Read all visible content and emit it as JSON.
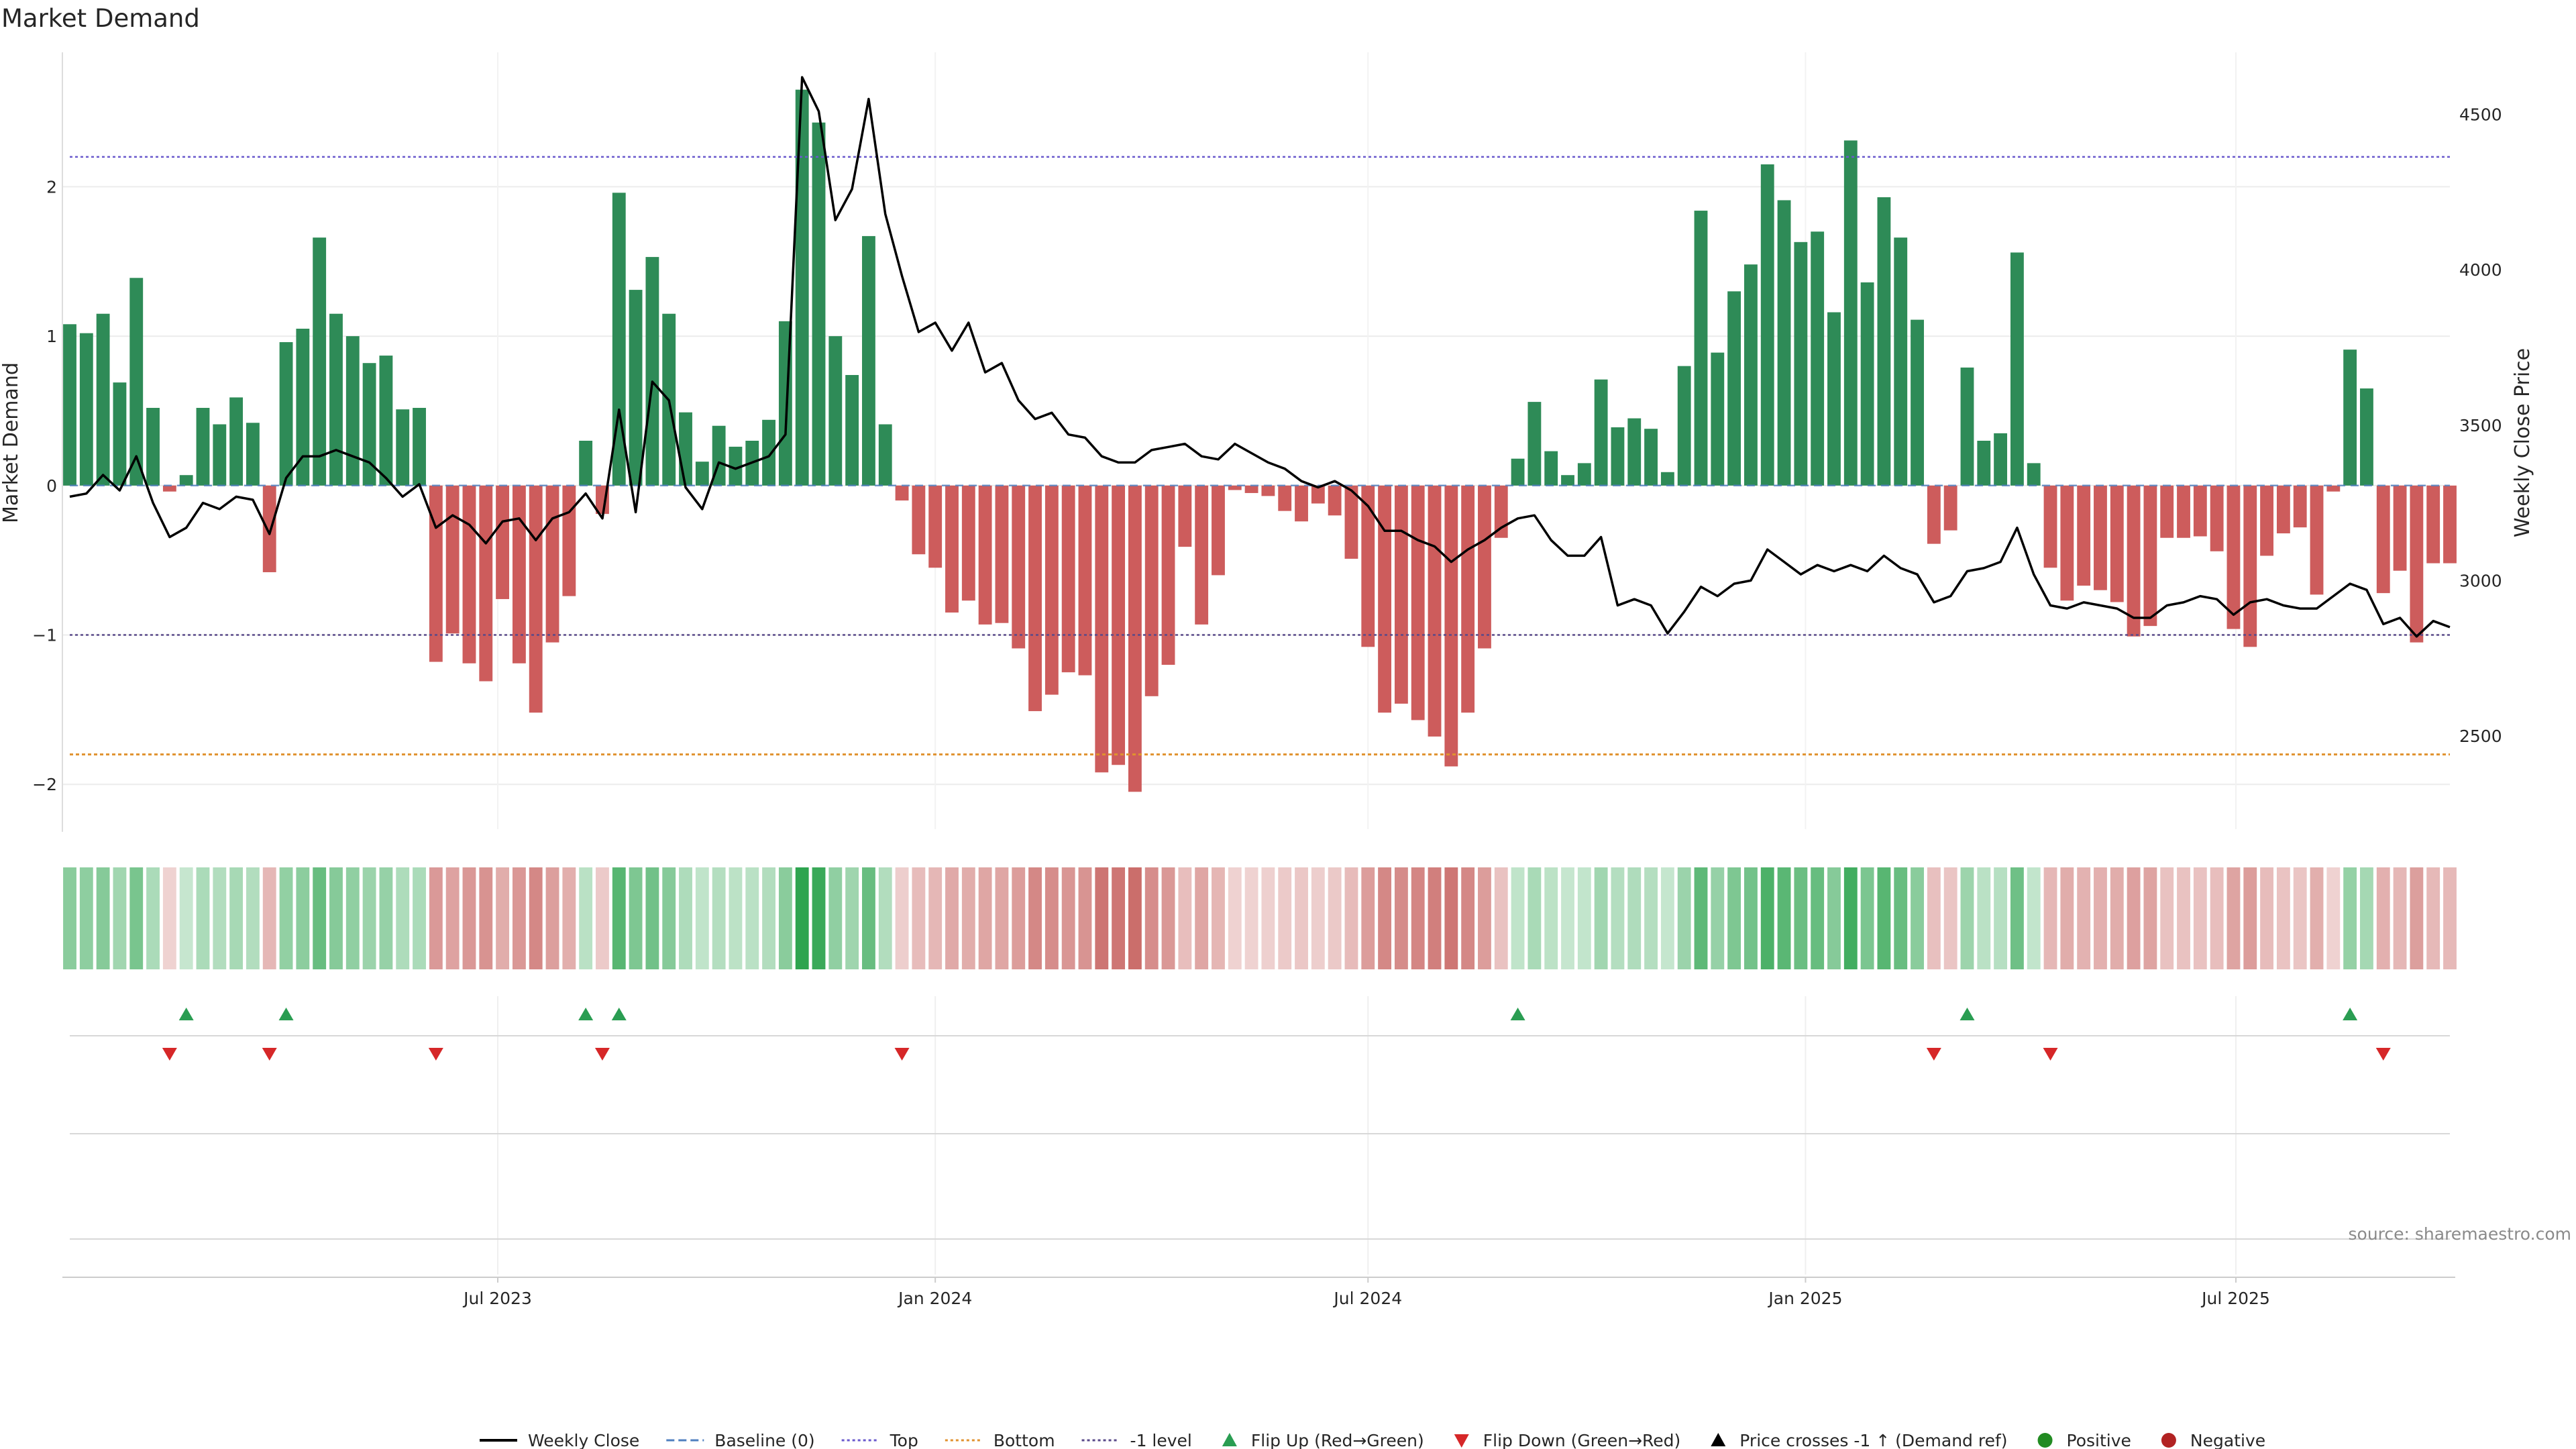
{
  "chart_data": {
    "type": "bar",
    "title": "Market Demand",
    "ylabel_left": "Market Demand",
    "ylabel_right": "Weekly Close Price",
    "source": "source: sharemaestro.com",
    "x_start": "2023-01-02",
    "x_step_days": 7,
    "ylim_left": [
      -2.3,
      2.9
    ],
    "ylim_right": [
      2200,
      4700
    ],
    "yticks_left": [
      -2,
      -1,
      0,
      1,
      2
    ],
    "yticks_left_labels": [
      "−2",
      "−1",
      "0",
      "1",
      "2"
    ],
    "yticks_right": [
      2500,
      3000,
      3500,
      4000,
      4500
    ],
    "yticks_right_labels": [
      "2500",
      "3000",
      "3500",
      "4000",
      "4500"
    ],
    "xticks": [
      {
        "date": "2023-07-01",
        "label": "Jul 2023"
      },
      {
        "date": "2024-01-01",
        "label": "Jan 2024"
      },
      {
        "date": "2024-07-01",
        "label": "Jul 2024"
      },
      {
        "date": "2025-01-01",
        "label": "Jan 2025"
      },
      {
        "date": "2025-07-01",
        "label": "Jul 2025"
      }
    ],
    "levels": {
      "top": 2.2,
      "bottom": -1.8,
      "minus_one": -1.0,
      "baseline": 0
    },
    "demand": [
      1.08,
      1.02,
      1.15,
      0.69,
      1.39,
      0.52,
      -0.04,
      0.07,
      0.52,
      0.41,
      0.59,
      0.42,
      -0.58,
      0.96,
      1.05,
      1.66,
      1.15,
      1.0,
      0.82,
      0.87,
      0.51,
      0.52,
      -1.18,
      -0.99,
      -1.19,
      -1.31,
      -0.76,
      -1.19,
      -1.52,
      -1.05,
      -0.74,
      0.3,
      -0.19,
      1.96,
      1.31,
      1.53,
      1.15,
      0.49,
      0.16,
      0.4,
      0.26,
      0.3,
      0.44,
      1.1,
      2.65,
      2.43,
      1.0,
      0.74,
      1.67,
      0.41,
      -0.1,
      -0.46,
      -0.55,
      -0.85,
      -0.77,
      -0.93,
      -0.92,
      -1.09,
      -1.51,
      -1.4,
      -1.25,
      -1.27,
      -1.92,
      -1.87,
      -2.05,
      -1.41,
      -1.2,
      -0.41,
      -0.93,
      -0.6,
      -0.03,
      -0.05,
      -0.07,
      -0.17,
      -0.24,
      -0.12,
      -0.2,
      -0.49,
      -1.08,
      -1.52,
      -1.46,
      -1.57,
      -1.68,
      -1.88,
      -1.52,
      -1.09,
      -0.35,
      0.18,
      0.56,
      0.23,
      0.07,
      0.15,
      0.71,
      0.39,
      0.45,
      0.38,
      0.09,
      0.8,
      1.84,
      0.89,
      1.3,
      1.48,
      2.15,
      1.91,
      1.63,
      1.7,
      1.16,
      2.31,
      1.36,
      1.93,
      1.66,
      1.11,
      -0.39,
      -0.3,
      0.79,
      0.3,
      0.35,
      1.56,
      0.15,
      -0.55,
      -0.77,
      -0.67,
      -0.7,
      -0.78,
      -1.01,
      -0.94,
      -0.35,
      -0.35,
      -0.34,
      -0.44,
      -0.96,
      -1.08,
      -0.47,
      -0.32,
      -0.28,
      -0.73,
      -0.04,
      0.91,
      0.65,
      -0.72,
      -0.57,
      -1.05,
      -0.52,
      -0.52
    ],
    "weekly_close": [
      3270,
      3280,
      3340,
      3290,
      3400,
      3250,
      3140,
      3170,
      3250,
      3230,
      3270,
      3260,
      3150,
      3330,
      3400,
      3400,
      3420,
      3400,
      3380,
      3330,
      3270,
      3310,
      3170,
      3210,
      3180,
      3120,
      3190,
      3200,
      3130,
      3200,
      3220,
      3280,
      3200,
      3550,
      3220,
      3640,
      3580,
      3300,
      3230,
      3380,
      3360,
      3380,
      3400,
      3470,
      4620,
      4510,
      4160,
      4260,
      4550,
      4180,
      3980,
      3800,
      3830,
      3740,
      3830,
      3670,
      3700,
      3580,
      3520,
      3540,
      3470,
      3460,
      3400,
      3380,
      3380,
      3420,
      3430,
      3440,
      3400,
      3390,
      3440,
      3410,
      3380,
      3360,
      3320,
      3300,
      3320,
      3290,
      3240,
      3160,
      3160,
      3130,
      3110,
      3060,
      3100,
      3130,
      3170,
      3200,
      3210,
      3130,
      3080,
      3080,
      3140,
      2920,
      2940,
      2920,
      2830,
      2900,
      2980,
      2950,
      2990,
      3000,
      3100,
      3060,
      3020,
      3050,
      3030,
      3050,
      3030,
      3080,
      3040,
      3020,
      2930,
      2950,
      3030,
      3040,
      3060,
      3170,
      3020,
      2920,
      2910,
      2930,
      2920,
      2910,
      2880,
      2880,
      2920,
      2930,
      2950,
      2940,
      2890,
      2930,
      2940,
      2920,
      2910,
      2910,
      2950,
      2990,
      2970,
      2860,
      2880,
      2820,
      2870,
      2850
    ],
    "flip_up": [
      7,
      13,
      31,
      33,
      87,
      114,
      137
    ],
    "flip_down": [
      6,
      12,
      22,
      32,
      50,
      112,
      119,
      139
    ],
    "legend": [
      {
        "key": "weekly_close",
        "label": "Weekly Close",
        "color": "#000000",
        "icon": "line-solid-icon"
      },
      {
        "key": "baseline",
        "label": "Baseline (0)",
        "color": "#4f7fbf",
        "icon": "line-dashed-icon"
      },
      {
        "key": "top",
        "label": "Top",
        "color": "#6a5acd",
        "icon": "line-dotted-icon"
      },
      {
        "key": "bottom",
        "label": "Bottom",
        "color": "#e0922f",
        "icon": "line-dotted-icon"
      },
      {
        "key": "minus_one",
        "label": "-1 level",
        "color": "#5a4a8a",
        "icon": "line-dotted-icon"
      },
      {
        "key": "flip_up",
        "label": "Flip Up (Red→Green)",
        "color": "#2a9d52",
        "icon": "triangle-up-icon"
      },
      {
        "key": "flip_down",
        "label": "Flip Down (Green→Red)",
        "color": "#d62728",
        "icon": "triangle-down-icon"
      },
      {
        "key": "price_cross",
        "label": "Price crosses -1 ↑ (Demand ref)",
        "color": "#000000",
        "icon": "triangle-up-icon"
      },
      {
        "key": "positive",
        "label": "Positive",
        "color": "#228b22",
        "icon": "dot-icon"
      },
      {
        "key": "negative",
        "label": "Negative",
        "color": "#b22222",
        "icon": "dot-icon"
      }
    ],
    "colors": {
      "positive_bar": "#2e8b57",
      "negative_bar": "#cd5c5c",
      "close_line": "#000000",
      "top_line": "#6a5acd",
      "bottom_line": "#e0922f",
      "minus_one_line": "#5a4a8a",
      "baseline": "#4f7fbf",
      "flip_up": "#2a9d52",
      "flip_down": "#d62728"
    }
  }
}
